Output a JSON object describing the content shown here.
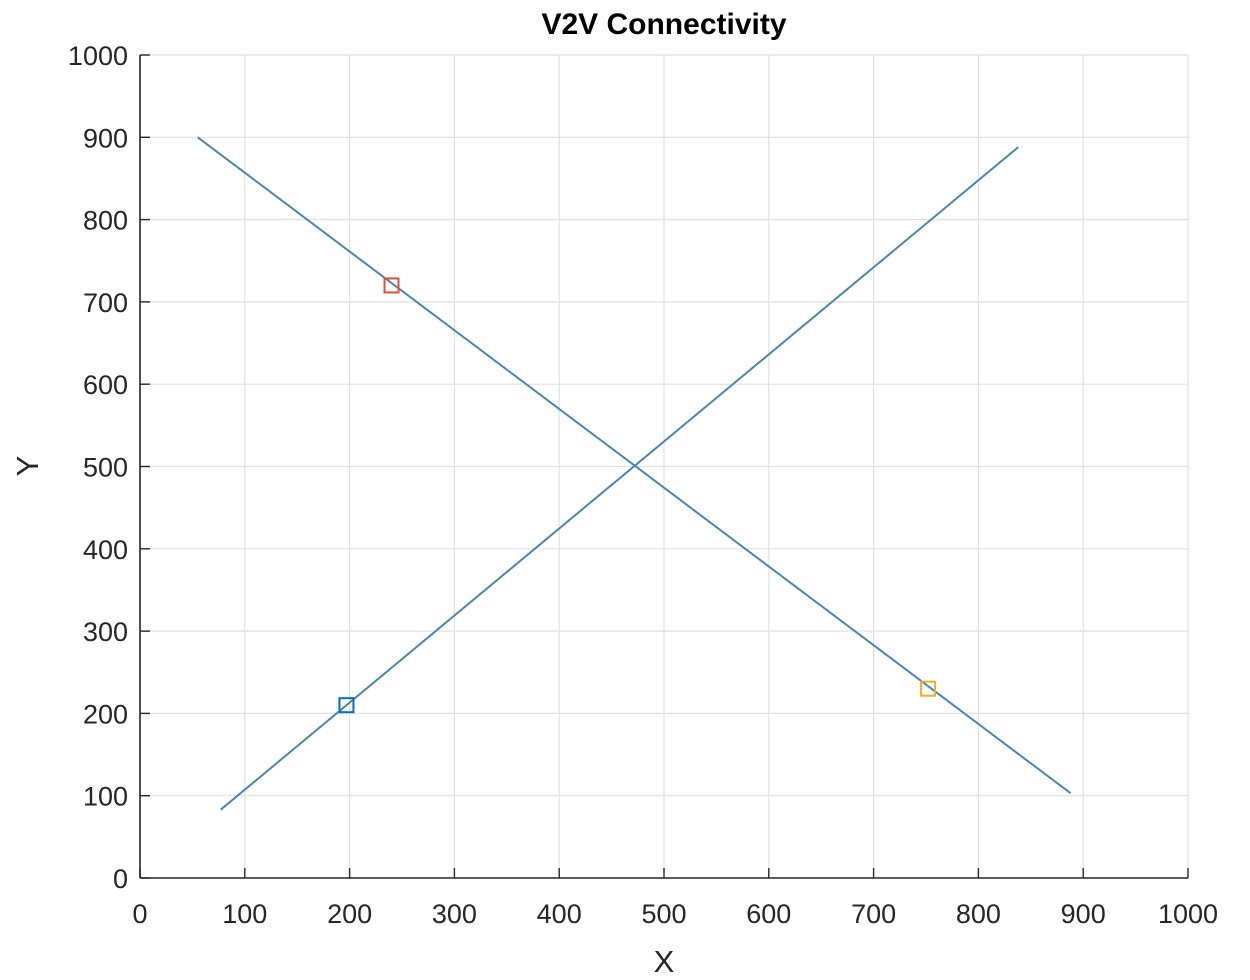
{
  "chart_data": {
    "type": "line",
    "title": "V2V Connectivity",
    "xlabel": "X",
    "ylabel": "Y",
    "xlim": [
      0,
      1000
    ],
    "ylim": [
      0,
      1000
    ],
    "xticks": [
      0,
      100,
      200,
      300,
      400,
      500,
      600,
      700,
      800,
      900,
      1000
    ],
    "yticks": [
      0,
      100,
      200,
      300,
      400,
      500,
      600,
      700,
      800,
      900,
      1000
    ],
    "grid": true,
    "lines": [
      {
        "x": [
          55,
          888
        ],
        "y": [
          900,
          103
        ],
        "color": "#4a86b4"
      },
      {
        "x": [
          77,
          838
        ],
        "y": [
          83,
          888
        ],
        "color": "#4a86b4"
      }
    ],
    "markers": [
      {
        "x": 240,
        "y": 720,
        "shape": "square",
        "color": "#d9533c"
      },
      {
        "x": 197,
        "y": 210,
        "shape": "square",
        "color": "#0072bd"
      },
      {
        "x": 752,
        "y": 230,
        "shape": "square",
        "color": "#edb120"
      }
    ]
  }
}
